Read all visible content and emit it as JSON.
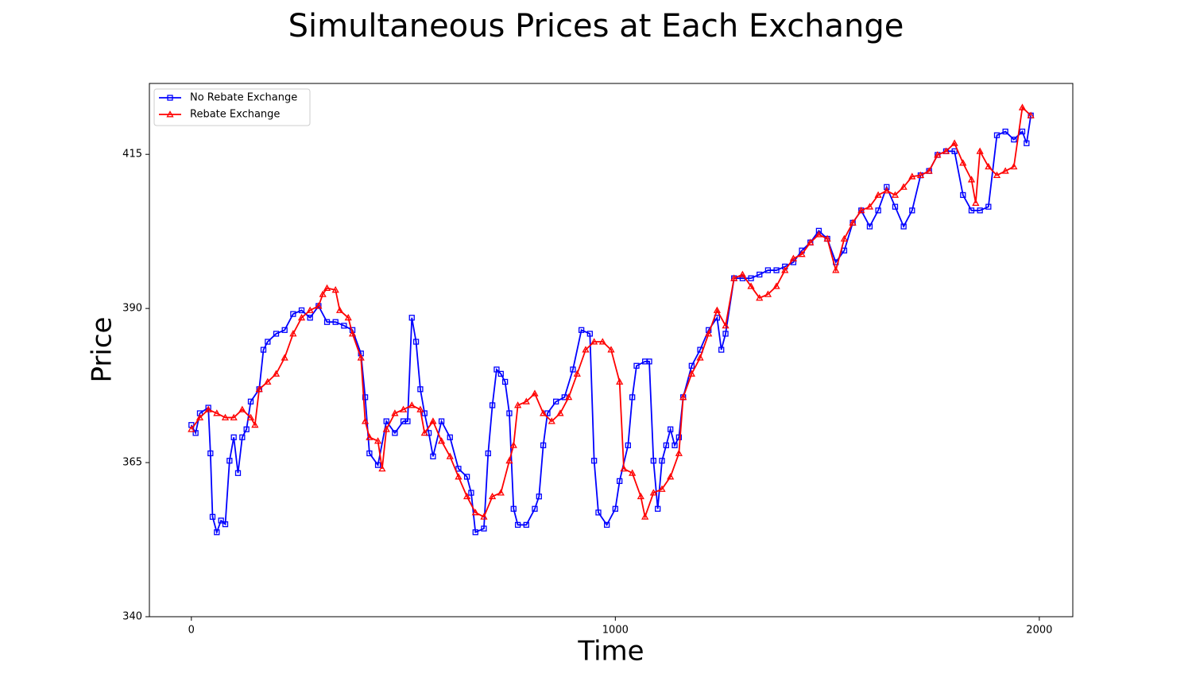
{
  "chart_data": {
    "type": "line",
    "title": "Simultaneous Prices at Each Exchange",
    "xlabel": "Time",
    "ylabel": "Price",
    "xlim": [
      -99,
      2079
    ],
    "ylim": [
      340,
      426.5
    ],
    "xticks": [
      0,
      1000,
      2000
    ],
    "yticks": [
      340,
      365,
      390,
      415
    ],
    "grid": false,
    "legend": "upper left",
    "series": [
      {
        "name": "No Rebate Exchange",
        "color": "#0000ff",
        "marker": "square",
        "x": [
          0,
          10,
          20,
          40,
          45,
          50,
          60,
          70,
          80,
          90,
          100,
          110,
          120,
          130,
          140,
          160,
          170,
          180,
          200,
          220,
          240,
          260,
          280,
          300,
          320,
          340,
          360,
          380,
          400,
          410,
          420,
          440,
          460,
          480,
          500,
          510,
          520,
          530,
          540,
          550,
          560,
          570,
          590,
          610,
          630,
          650,
          660,
          670,
          690,
          700,
          710,
          720,
          730,
          740,
          750,
          760,
          770,
          790,
          810,
          820,
          830,
          840,
          860,
          880,
          900,
          920,
          940,
          950,
          960,
          980,
          1000,
          1010,
          1030,
          1040,
          1050,
          1070,
          1080,
          1090,
          1100,
          1110,
          1120,
          1130,
          1140,
          1150,
          1160,
          1180,
          1200,
          1220,
          1240,
          1250,
          1260,
          1280,
          1300,
          1320,
          1340,
          1360,
          1380,
          1400,
          1420,
          1440,
          1460,
          1480,
          1500,
          1520,
          1540,
          1560,
          1580,
          1600,
          1620,
          1640,
          1660,
          1680,
          1700,
          1720,
          1740,
          1760,
          1780,
          1800,
          1820,
          1840,
          1860,
          1880,
          1900,
          1920,
          1940,
          1960,
          1970,
          1980
        ],
        "values": [
          371.1,
          369.8,
          373,
          373.9,
          366.5,
          356.2,
          353.7,
          355.6,
          355,
          365.3,
          369.1,
          363.3,
          369.1,
          370.4,
          374.9,
          376.9,
          383.3,
          384.6,
          385.9,
          386.5,
          389.1,
          389.7,
          388.5,
          390.4,
          387.8,
          387.8,
          387.2,
          386.5,
          382.7,
          375.6,
          366.5,
          364.6,
          371.7,
          369.8,
          371.7,
          371.7,
          388.5,
          384.6,
          376.9,
          373,
          369.8,
          366,
          371.7,
          369.1,
          364,
          362.7,
          360.1,
          353.7,
          354.3,
          366.5,
          374.3,
          380.1,
          379.4,
          378.1,
          373,
          357.5,
          354.9,
          354.9,
          357.5,
          359.5,
          367.8,
          373,
          374.9,
          375.6,
          380.1,
          386.5,
          385.9,
          365.3,
          356.9,
          354.9,
          357.5,
          362,
          367.8,
          375.6,
          380.7,
          381.4,
          381.4,
          365.3,
          357.5,
          365.3,
          367.8,
          370.4,
          367.8,
          369.1,
          375.6,
          380.7,
          383.3,
          386.5,
          388.5,
          383.3,
          385.9,
          394.9,
          394.9,
          394.9,
          395.5,
          396.2,
          396.2,
          396.8,
          397.5,
          399.4,
          400.7,
          402.6,
          401.3,
          397.5,
          399.4,
          403.9,
          405.9,
          403.3,
          405.9,
          409.7,
          406.5,
          403.3,
          405.9,
          411.6,
          412.3,
          414.9,
          415.5,
          415.5,
          408.4,
          405.9,
          405.9,
          406.5,
          418.1,
          418.7,
          417.4,
          418.7,
          416.8,
          421.3
        ]
      },
      {
        "name": "Rebate Exchange",
        "color": "#ff0000",
        "marker": "triangle",
        "x": [
          0,
          20,
          40,
          60,
          80,
          100,
          120,
          140,
          150,
          160,
          180,
          200,
          220,
          240,
          260,
          280,
          300,
          310,
          320,
          340,
          350,
          370,
          380,
          400,
          410,
          420,
          440,
          450,
          460,
          480,
          500,
          520,
          540,
          550,
          570,
          590,
          610,
          630,
          650,
          670,
          690,
          710,
          730,
          750,
          760,
          770,
          790,
          810,
          830,
          850,
          870,
          890,
          910,
          930,
          950,
          970,
          990,
          1010,
          1020,
          1040,
          1060,
          1070,
          1090,
          1110,
          1130,
          1150,
          1160,
          1180,
          1200,
          1220,
          1240,
          1260,
          1280,
          1300,
          1320,
          1340,
          1360,
          1380,
          1400,
          1420,
          1440,
          1460,
          1480,
          1500,
          1520,
          1540,
          1560,
          1580,
          1600,
          1620,
          1640,
          1660,
          1680,
          1700,
          1720,
          1740,
          1760,
          1780,
          1800,
          1820,
          1840,
          1850,
          1860,
          1880,
          1900,
          1920,
          1940,
          1960,
          1980
        ],
        "values": [
          370.4,
          372.3,
          373.6,
          373,
          372.3,
          372.3,
          373.6,
          372.3,
          371.1,
          376.9,
          378.1,
          379.4,
          382,
          385.9,
          388.5,
          389.7,
          390.4,
          392.3,
          393.3,
          393,
          389.7,
          388.5,
          385.9,
          382,
          371.7,
          369.1,
          368.5,
          364,
          370.4,
          373,
          373.6,
          374.3,
          373.6,
          369.8,
          371.7,
          368.5,
          366,
          362.7,
          359.5,
          356.9,
          356.2,
          359.5,
          360.1,
          365.3,
          367.8,
          374.3,
          374.9,
          376.2,
          373,
          371.7,
          373,
          375.6,
          379.4,
          383.3,
          384.6,
          384.6,
          383.3,
          378.1,
          364,
          363.3,
          359.5,
          356.2,
          360.1,
          360.7,
          362.7,
          366.5,
          375.6,
          379.4,
          382,
          385.9,
          389.7,
          387.2,
          394.9,
          395.5,
          393.6,
          391.7,
          392.3,
          393.6,
          396.2,
          398.1,
          398.8,
          400.7,
          402,
          401.3,
          396.2,
          401.3,
          403.9,
          405.9,
          406.5,
          408.4,
          409.1,
          408.4,
          409.7,
          411.4,
          411.6,
          412.3,
          414.9,
          415.5,
          416.8,
          413.6,
          410.9,
          407.1,
          415.5,
          413,
          411.6,
          412.3,
          413,
          422.6,
          421.3
        ]
      }
    ]
  }
}
